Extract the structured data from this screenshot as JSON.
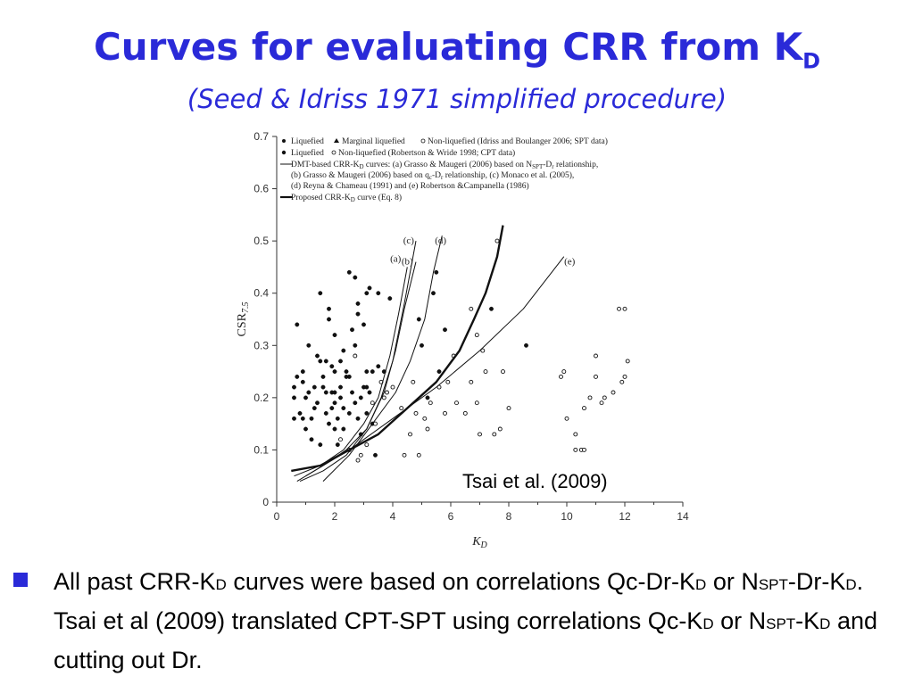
{
  "slide": {
    "title": "Curves for evaluating CRR from K",
    "title_sub": "D",
    "subtitle": "(Seed & Idriss 1971 simplified procedure)",
    "citation": "Tsai et al. (2009)",
    "bullet": {
      "t1": "All past CRR-K",
      "s1": "D",
      "t2": " curves were based on correlations Qc-Dr-K",
      "s2": "D",
      "t3": " or N",
      "s3": "SPT",
      "t4": "-Dr-K",
      "s4": "D",
      "t5": ". Tsai et al (2009) translated CPT-SPT using correlations Qc-K",
      "s5": "D",
      "t6": " or N",
      "s6": "SPT",
      "t7": "-K",
      "s7": "D",
      "t8": " and cutting out Dr."
    }
  },
  "chart_data": {
    "type": "scatter",
    "xlabel": "K",
    "xlabel_sub": "D",
    "ylabel": "CSR",
    "ylabel_sub": "7.5",
    "xlim": [
      0,
      14
    ],
    "ylim": [
      0,
      0.7
    ],
    "x_ticks": [
      "0",
      "2",
      "4",
      "6",
      "8",
      "10",
      "12",
      "14"
    ],
    "y_ticks": [
      "0",
      "0.1",
      "0.2",
      "0.3",
      "0.4",
      "0.5",
      "0.6",
      "0.7"
    ],
    "legend_position": "top-left",
    "legend": [
      "Liquefied",
      "Marginal liquefied",
      "Non-liquefied (Idriss and Boulanger 2006; SPT data)",
      "Liquefied",
      "Non-liquefied (Robertson & Wride 1998; CPT data)",
      "DMT-based CRR-K",
      "D",
      " curves: (a) Grasso & Maugeri (2006) based on N",
      "SPT",
      "-D",
      "r",
      " relationship,",
      "(b) Grasso & Maugeri (2006) based on q",
      "c",
      "-D",
      "r",
      " relationship, (c) Monaco et al. (2005),",
      "(d) Reyna & Chameau (1991) and (e) Robertson &Campanella (1986)",
      "Proposed CRR-K",
      "D",
      " curve (Eq. 8)"
    ],
    "curve_labels": [
      "(a)",
      "(b)",
      "(c)",
      "(d)",
      "(e)"
    ],
    "series": [
      {
        "name": "Liquefied",
        "marker": "filled",
        "points": [
          [
            0.6,
            0.16
          ],
          [
            0.6,
            0.2
          ],
          [
            0.6,
            0.22
          ],
          [
            0.7,
            0.34
          ],
          [
            0.7,
            0.24
          ],
          [
            0.8,
            0.17
          ],
          [
            0.9,
            0.16
          ],
          [
            0.9,
            0.25
          ],
          [
            1,
            0.2
          ],
          [
            1,
            0.14
          ],
          [
            1.1,
            0.3
          ],
          [
            1.1,
            0.21
          ],
          [
            1.2,
            0.12
          ],
          [
            1.3,
            0.22
          ],
          [
            1.3,
            0.18
          ],
          [
            1.4,
            0.19
          ],
          [
            1.5,
            0.27
          ],
          [
            1.5,
            0.11
          ],
          [
            1.5,
            0.4
          ],
          [
            1.6,
            0.22
          ],
          [
            1.7,
            0.17
          ],
          [
            1.7,
            0.27
          ],
          [
            1.8,
            0.37
          ],
          [
            1.8,
            0.15
          ],
          [
            1.8,
            0.35
          ],
          [
            1.9,
            0.21
          ],
          [
            1.9,
            0.18
          ],
          [
            2,
            0.19
          ],
          [
            2,
            0.14
          ],
          [
            2,
            0.25
          ],
          [
            2,
            0.32
          ],
          [
            2.1,
            0.16
          ],
          [
            2.1,
            0.11
          ],
          [
            2.2,
            0.2
          ],
          [
            2.2,
            0.22
          ],
          [
            2.3,
            0.29
          ],
          [
            2.3,
            0.18
          ],
          [
            2.4,
            0.24
          ],
          [
            2.5,
            0.17
          ],
          [
            2.5,
            0.1
          ],
          [
            2.6,
            0.21
          ],
          [
            2.6,
            0.33
          ],
          [
            2.7,
            0.19
          ],
          [
            2.7,
            0.3
          ],
          [
            2.8,
            0.38
          ],
          [
            2.8,
            0.16
          ],
          [
            2.9,
            0.2
          ],
          [
            2.9,
            0.13
          ],
          [
            3,
            0.34
          ],
          [
            3,
            0.22
          ],
          [
            3.1,
            0.25
          ],
          [
            3.1,
            0.17
          ],
          [
            3.2,
            0.41
          ],
          [
            3.2,
            0.21
          ],
          [
            3.3,
            0.25
          ],
          [
            3.3,
            0.15
          ],
          [
            3.4,
            0.09
          ],
          [
            3.5,
            0.4
          ],
          [
            3.7,
            0.25
          ],
          [
            1.7,
            0.21
          ],
          [
            2.4,
            0.25
          ],
          [
            1.2,
            0.16
          ],
          [
            0.9,
            0.23
          ],
          [
            1.6,
            0.24
          ],
          [
            2.2,
            0.27
          ],
          [
            2.8,
            0.36
          ],
          [
            3.1,
            0.22
          ],
          [
            2.3,
            0.14
          ],
          [
            1.9,
            0.26
          ],
          [
            2.5,
            0.24
          ],
          [
            1.4,
            0.28
          ],
          [
            2.0,
            0.21
          ]
        ]
      },
      {
        "name": "Marginal liquefied",
        "marker": "filled",
        "points": [
          [
            2.7,
            0.43
          ],
          [
            3.1,
            0.4
          ],
          [
            3.9,
            0.39
          ],
          [
            5.4,
            0.4
          ],
          [
            5.8,
            0.33
          ],
          [
            7.4,
            0.37
          ],
          [
            8.6,
            0.3
          ],
          [
            4.9,
            0.35
          ],
          [
            5.5,
            0.44
          ],
          [
            3.5,
            0.26
          ],
          [
            5,
            0.3
          ],
          [
            5.2,
            0.2
          ],
          [
            5.6,
            0.25
          ],
          [
            2.5,
            0.44
          ]
        ]
      },
      {
        "name": "Non-liquefied",
        "marker": "open",
        "points": [
          [
            2.5,
            0.1
          ],
          [
            2.8,
            0.08
          ],
          [
            2.9,
            0.09
          ],
          [
            3.1,
            0.11
          ],
          [
            3.3,
            0.19
          ],
          [
            3.4,
            0.15
          ],
          [
            3.8,
            0.21
          ],
          [
            4,
            0.22
          ],
          [
            4.4,
            0.09
          ],
          [
            4.6,
            0.13
          ],
          [
            4.8,
            0.17
          ],
          [
            4.9,
            0.09
          ],
          [
            5.1,
            0.16
          ],
          [
            5.2,
            0.14
          ],
          [
            5.6,
            0.22
          ],
          [
            5.8,
            0.17
          ],
          [
            6.2,
            0.19
          ],
          [
            6.5,
            0.17
          ],
          [
            6.7,
            0.23
          ],
          [
            6.9,
            0.19
          ],
          [
            7,
            0.13
          ],
          [
            7.2,
            0.25
          ],
          [
            7.5,
            0.13
          ],
          [
            7.7,
            0.14
          ],
          [
            7.8,
            0.25
          ],
          [
            8,
            0.18
          ],
          [
            7.6,
            0.5
          ],
          [
            6.7,
            0.37
          ],
          [
            6.9,
            0.32
          ],
          [
            6.1,
            0.28
          ],
          [
            7.1,
            0.29
          ],
          [
            9.8,
            0.24
          ],
          [
            10,
            0.16
          ],
          [
            10.3,
            0.13
          ],
          [
            10.5,
            0.1
          ],
          [
            10.6,
            0.18
          ],
          [
            10.8,
            0.2
          ],
          [
            11,
            0.24
          ],
          [
            11.2,
            0.19
          ],
          [
            11.3,
            0.2
          ],
          [
            11.6,
            0.21
          ],
          [
            11.8,
            0.37
          ],
          [
            11.9,
            0.23
          ],
          [
            12,
            0.37
          ],
          [
            12.1,
            0.27
          ],
          [
            10.3,
            0.1
          ],
          [
            10.6,
            0.1
          ],
          [
            9.9,
            0.25
          ],
          [
            11,
            0.28
          ],
          [
            12,
            0.24
          ],
          [
            2.7,
            0.28
          ],
          [
            3.6,
            0.23
          ],
          [
            4.3,
            0.18
          ],
          [
            5.9,
            0.23
          ],
          [
            5.3,
            0.19
          ],
          [
            2.2,
            0.12
          ],
          [
            3.7,
            0.2
          ],
          [
            4.7,
            0.23
          ]
        ]
      },
      {
        "name": "(a)",
        "line": "thin",
        "points": [
          [
            0.6,
            0.05
          ],
          [
            1.5,
            0.07
          ],
          [
            2.3,
            0.1
          ],
          [
            3,
            0.15
          ],
          [
            3.5,
            0.2
          ],
          [
            3.9,
            0.28
          ],
          [
            4.2,
            0.36
          ],
          [
            4.5,
            0.45
          ]
        ]
      },
      {
        "name": "(b)",
        "line": "thin",
        "points": [
          [
            0.8,
            0.04
          ],
          [
            1.6,
            0.06
          ],
          [
            2.4,
            0.09
          ],
          [
            3.1,
            0.14
          ],
          [
            3.7,
            0.21
          ],
          [
            4.1,
            0.29
          ],
          [
            4.4,
            0.37
          ],
          [
            4.8,
            0.46
          ]
        ]
      },
      {
        "name": "(c)",
        "line": "thin",
        "points": [
          [
            0.7,
            0.04
          ],
          [
            1.6,
            0.07
          ],
          [
            2.4,
            0.1
          ],
          [
            3.1,
            0.14
          ],
          [
            3.6,
            0.2
          ],
          [
            4,
            0.27
          ],
          [
            4.4,
            0.38
          ],
          [
            4.8,
            0.5
          ]
        ]
      },
      {
        "name": "(d)",
        "line": "thin",
        "points": [
          [
            1.6,
            0.04
          ],
          [
            2.5,
            0.09
          ],
          [
            3.3,
            0.15
          ],
          [
            4.1,
            0.21
          ],
          [
            4.6,
            0.27
          ],
          [
            5.1,
            0.35
          ],
          [
            5.4,
            0.44
          ],
          [
            5.7,
            0.51
          ]
        ]
      },
      {
        "name": "(e)",
        "line": "thin",
        "points": [
          [
            1,
            0.05
          ],
          [
            2.5,
            0.1
          ],
          [
            4,
            0.16
          ],
          [
            5.5,
            0.22
          ],
          [
            7,
            0.29
          ],
          [
            8.5,
            0.37
          ],
          [
            9.9,
            0.47
          ]
        ]
      },
      {
        "name": "Proposed CRR-K_D curve (Eq. 8)",
        "line": "thick",
        "points": [
          [
            0.5,
            0.06
          ],
          [
            1.5,
            0.07
          ],
          [
            2.5,
            0.1
          ],
          [
            3.5,
            0.13
          ],
          [
            4.5,
            0.18
          ],
          [
            5.5,
            0.23
          ],
          [
            6.3,
            0.29
          ],
          [
            6.8,
            0.35
          ],
          [
            7.2,
            0.4
          ],
          [
            7.6,
            0.47
          ],
          [
            7.8,
            0.53
          ]
        ]
      }
    ]
  }
}
